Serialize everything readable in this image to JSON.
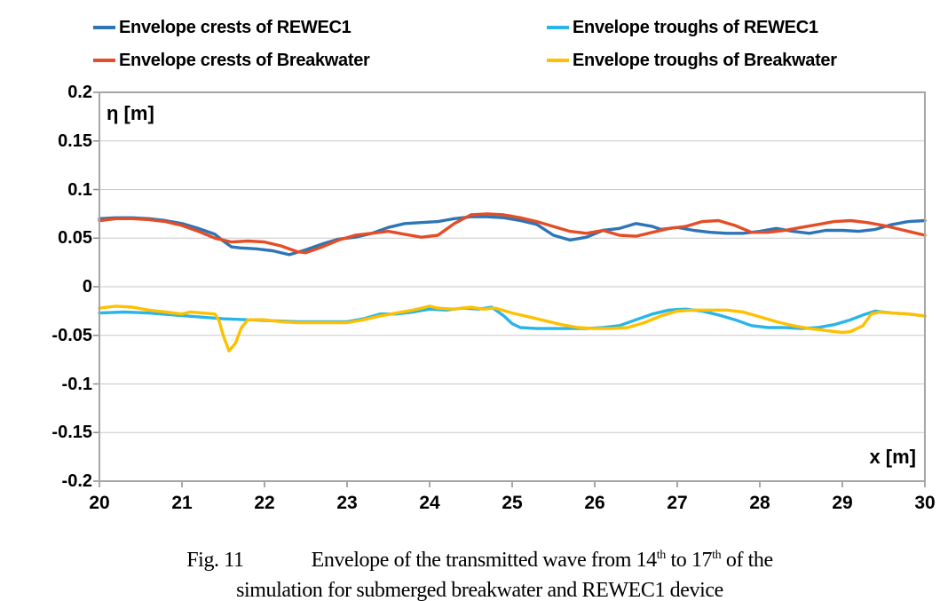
{
  "chart_data": {
    "type": "line",
    "title": "",
    "xlabel": "x [m]",
    "ylabel": "η [m]",
    "xlim": [
      20,
      30
    ],
    "ylim": [
      -0.2,
      0.2
    ],
    "grid": "horizontal",
    "legend_position": "top",
    "x_ticks": [
      20,
      21,
      22,
      23,
      24,
      25,
      26,
      27,
      28,
      29,
      30
    ],
    "y_ticks": [
      {
        "v": 0.2,
        "label": "0.2"
      },
      {
        "v": 0.15,
        "label": "0.15"
      },
      {
        "v": 0.1,
        "label": "0.1"
      },
      {
        "v": 0.05,
        "label": "0.05"
      },
      {
        "v": 0,
        "label": "0"
      },
      {
        "v": -0.05,
        "label": "-0.05"
      },
      {
        "v": -0.1,
        "label": "-0.1"
      },
      {
        "v": -0.15,
        "label": "-0.15"
      },
      {
        "v": -0.2,
        "label": "-0.2"
      }
    ],
    "series": [
      {
        "name": "Envelope crests of REWEC1",
        "color": "#2E75B6",
        "points": [
          [
            20.0,
            0.07
          ],
          [
            20.2,
            0.071
          ],
          [
            20.4,
            0.071
          ],
          [
            20.6,
            0.07
          ],
          [
            20.8,
            0.068
          ],
          [
            21.0,
            0.065
          ],
          [
            21.2,
            0.06
          ],
          [
            21.4,
            0.054
          ],
          [
            21.5,
            0.047
          ],
          [
            21.6,
            0.041
          ],
          [
            21.7,
            0.04
          ],
          [
            21.9,
            0.039
          ],
          [
            22.1,
            0.037
          ],
          [
            22.3,
            0.033
          ],
          [
            22.5,
            0.038
          ],
          [
            22.7,
            0.044
          ],
          [
            22.9,
            0.049
          ],
          [
            23.1,
            0.051
          ],
          [
            23.3,
            0.055
          ],
          [
            23.5,
            0.061
          ],
          [
            23.7,
            0.065
          ],
          [
            23.9,
            0.066
          ],
          [
            24.1,
            0.067
          ],
          [
            24.3,
            0.07
          ],
          [
            24.5,
            0.072
          ],
          [
            24.7,
            0.072
          ],
          [
            24.9,
            0.071
          ],
          [
            25.1,
            0.068
          ],
          [
            25.3,
            0.064
          ],
          [
            25.5,
            0.053
          ],
          [
            25.7,
            0.048
          ],
          [
            25.9,
            0.051
          ],
          [
            26.1,
            0.058
          ],
          [
            26.3,
            0.06
          ],
          [
            26.5,
            0.065
          ],
          [
            26.7,
            0.062
          ],
          [
            26.8,
            0.059
          ],
          [
            27.0,
            0.061
          ],
          [
            27.2,
            0.058
          ],
          [
            27.4,
            0.056
          ],
          [
            27.6,
            0.055
          ],
          [
            27.8,
            0.055
          ],
          [
            28.0,
            0.057
          ],
          [
            28.2,
            0.06
          ],
          [
            28.4,
            0.057
          ],
          [
            28.6,
            0.055
          ],
          [
            28.8,
            0.058
          ],
          [
            29.0,
            0.058
          ],
          [
            29.2,
            0.057
          ],
          [
            29.4,
            0.059
          ],
          [
            29.6,
            0.064
          ],
          [
            29.8,
            0.067
          ],
          [
            30.0,
            0.068
          ]
        ]
      },
      {
        "name": "Envelope crests of Breakwater",
        "color": "#E44D26",
        "points": [
          [
            20.0,
            0.068
          ],
          [
            20.2,
            0.07
          ],
          [
            20.4,
            0.07
          ],
          [
            20.6,
            0.069
          ],
          [
            20.8,
            0.067
          ],
          [
            21.0,
            0.063
          ],
          [
            21.2,
            0.057
          ],
          [
            21.4,
            0.05
          ],
          [
            21.6,
            0.046
          ],
          [
            21.8,
            0.047
          ],
          [
            22.0,
            0.046
          ],
          [
            22.2,
            0.042
          ],
          [
            22.4,
            0.036
          ],
          [
            22.5,
            0.035
          ],
          [
            22.7,
            0.041
          ],
          [
            22.9,
            0.048
          ],
          [
            23.1,
            0.053
          ],
          [
            23.3,
            0.055
          ],
          [
            23.5,
            0.057
          ],
          [
            23.7,
            0.054
          ],
          [
            23.9,
            0.051
          ],
          [
            24.1,
            0.053
          ],
          [
            24.3,
            0.065
          ],
          [
            24.5,
            0.074
          ],
          [
            24.7,
            0.075
          ],
          [
            24.9,
            0.074
          ],
          [
            25.1,
            0.071
          ],
          [
            25.3,
            0.067
          ],
          [
            25.5,
            0.062
          ],
          [
            25.7,
            0.057
          ],
          [
            25.9,
            0.055
          ],
          [
            26.1,
            0.058
          ],
          [
            26.3,
            0.053
          ],
          [
            26.5,
            0.052
          ],
          [
            26.7,
            0.056
          ],
          [
            26.9,
            0.06
          ],
          [
            27.1,
            0.062
          ],
          [
            27.3,
            0.067
          ],
          [
            27.5,
            0.068
          ],
          [
            27.7,
            0.063
          ],
          [
            27.9,
            0.056
          ],
          [
            28.1,
            0.056
          ],
          [
            28.3,
            0.058
          ],
          [
            28.5,
            0.061
          ],
          [
            28.7,
            0.064
          ],
          [
            28.9,
            0.067
          ],
          [
            29.1,
            0.068
          ],
          [
            29.3,
            0.066
          ],
          [
            29.5,
            0.063
          ],
          [
            29.7,
            0.059
          ],
          [
            29.9,
            0.055
          ],
          [
            30.0,
            0.053
          ]
        ]
      },
      {
        "name": "Envelope troughs of REWEC1",
        "color": "#29B5E8",
        "points": [
          [
            20.0,
            -0.027
          ],
          [
            20.3,
            -0.026
          ],
          [
            20.6,
            -0.027
          ],
          [
            20.9,
            -0.029
          ],
          [
            21.2,
            -0.031
          ],
          [
            21.5,
            -0.033
          ],
          [
            21.8,
            -0.034
          ],
          [
            22.1,
            -0.035
          ],
          [
            22.4,
            -0.036
          ],
          [
            22.7,
            -0.036
          ],
          [
            23.0,
            -0.036
          ],
          [
            23.2,
            -0.033
          ],
          [
            23.4,
            -0.028
          ],
          [
            23.6,
            -0.028
          ],
          [
            23.8,
            -0.026
          ],
          [
            24.0,
            -0.023
          ],
          [
            24.2,
            -0.024
          ],
          [
            24.4,
            -0.022
          ],
          [
            24.6,
            -0.023
          ],
          [
            24.75,
            -0.021
          ],
          [
            24.9,
            -0.03
          ],
          [
            25.0,
            -0.038
          ],
          [
            25.1,
            -0.042
          ],
          [
            25.3,
            -0.043
          ],
          [
            25.5,
            -0.043
          ],
          [
            25.7,
            -0.043
          ],
          [
            25.9,
            -0.043
          ],
          [
            26.1,
            -0.042
          ],
          [
            26.3,
            -0.04
          ],
          [
            26.5,
            -0.034
          ],
          [
            26.7,
            -0.028
          ],
          [
            26.9,
            -0.024
          ],
          [
            27.1,
            -0.023
          ],
          [
            27.3,
            -0.025
          ],
          [
            27.5,
            -0.029
          ],
          [
            27.7,
            -0.034
          ],
          [
            27.9,
            -0.04
          ],
          [
            28.1,
            -0.042
          ],
          [
            28.3,
            -0.042
          ],
          [
            28.5,
            -0.043
          ],
          [
            28.7,
            -0.042
          ],
          [
            28.9,
            -0.039
          ],
          [
            29.1,
            -0.034
          ],
          [
            29.25,
            -0.029
          ],
          [
            29.4,
            -0.025
          ],
          [
            29.6,
            -0.027
          ],
          [
            29.8,
            -0.028
          ],
          [
            30.0,
            -0.03
          ]
        ]
      },
      {
        "name": "Envelope troughs of Breakwater",
        "color": "#FFC000",
        "points": [
          [
            20.0,
            -0.022
          ],
          [
            20.2,
            -0.02
          ],
          [
            20.4,
            -0.021
          ],
          [
            20.6,
            -0.024
          ],
          [
            20.8,
            -0.026
          ],
          [
            21.0,
            -0.028
          ],
          [
            21.1,
            -0.026
          ],
          [
            21.25,
            -0.027
          ],
          [
            21.4,
            -0.028
          ],
          [
            21.45,
            -0.035
          ],
          [
            21.5,
            -0.05
          ],
          [
            21.57,
            -0.066
          ],
          [
            21.65,
            -0.058
          ],
          [
            21.72,
            -0.042
          ],
          [
            21.8,
            -0.034
          ],
          [
            22.0,
            -0.034
          ],
          [
            22.2,
            -0.036
          ],
          [
            22.4,
            -0.037
          ],
          [
            22.6,
            -0.037
          ],
          [
            22.8,
            -0.037
          ],
          [
            23.0,
            -0.037
          ],
          [
            23.2,
            -0.034
          ],
          [
            23.4,
            -0.03
          ],
          [
            23.6,
            -0.027
          ],
          [
            23.8,
            -0.024
          ],
          [
            24.0,
            -0.02
          ],
          [
            24.1,
            -0.022
          ],
          [
            24.3,
            -0.023
          ],
          [
            24.5,
            -0.021
          ],
          [
            24.65,
            -0.023
          ],
          [
            24.8,
            -0.022
          ],
          [
            25.0,
            -0.027
          ],
          [
            25.2,
            -0.031
          ],
          [
            25.4,
            -0.035
          ],
          [
            25.6,
            -0.039
          ],
          [
            25.8,
            -0.042
          ],
          [
            26.0,
            -0.043
          ],
          [
            26.2,
            -0.043
          ],
          [
            26.4,
            -0.042
          ],
          [
            26.6,
            -0.037
          ],
          [
            26.8,
            -0.03
          ],
          [
            27.0,
            -0.025
          ],
          [
            27.2,
            -0.024
          ],
          [
            27.4,
            -0.024
          ],
          [
            27.6,
            -0.024
          ],
          [
            27.8,
            -0.026
          ],
          [
            28.0,
            -0.031
          ],
          [
            28.2,
            -0.036
          ],
          [
            28.4,
            -0.04
          ],
          [
            28.6,
            -0.043
          ],
          [
            28.8,
            -0.045
          ],
          [
            29.0,
            -0.047
          ],
          [
            29.1,
            -0.046
          ],
          [
            29.25,
            -0.04
          ],
          [
            29.35,
            -0.028
          ],
          [
            29.45,
            -0.026
          ],
          [
            29.6,
            -0.027
          ],
          [
            29.8,
            -0.028
          ],
          [
            30.0,
            -0.03
          ]
        ]
      }
    ]
  },
  "caption": {
    "fig_label": "Fig. 11",
    "line1_part1": "Envelope of the transmitted wave from 14",
    "line1_sup1": "th",
    "line1_part2": " to 17",
    "line1_sup2": "th",
    "line1_part3": " of the",
    "line2": "simulation for submerged breakwater and REWEC1 device"
  }
}
